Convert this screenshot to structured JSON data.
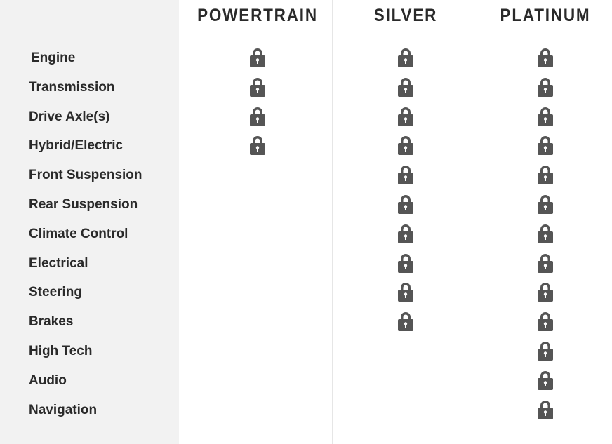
{
  "columns": [
    "POWERTRAIN",
    "SILVER",
    "PLATINUM"
  ],
  "rows": [
    {
      "label": "Engine",
      "coverage": [
        true,
        true,
        true
      ]
    },
    {
      "label": "Transmission",
      "coverage": [
        true,
        true,
        true
      ]
    },
    {
      "label": "Drive Axle(s)",
      "coverage": [
        true,
        true,
        true
      ]
    },
    {
      "label": "Hybrid/Electric",
      "coverage": [
        true,
        true,
        true
      ]
    },
    {
      "label": "Front Suspension",
      "coverage": [
        false,
        true,
        true
      ]
    },
    {
      "label": "Rear Suspension",
      "coverage": [
        false,
        true,
        true
      ]
    },
    {
      "label": "Climate Control",
      "coverage": [
        false,
        true,
        true
      ]
    },
    {
      "label": "Electrical",
      "coverage": [
        false,
        true,
        true
      ]
    },
    {
      "label": "Steering",
      "coverage": [
        false,
        true,
        true
      ]
    },
    {
      "label": "Brakes",
      "coverage": [
        false,
        true,
        true
      ]
    },
    {
      "label": "High Tech",
      "coverage": [
        false,
        false,
        true
      ]
    },
    {
      "label": "Audio",
      "coverage": [
        false,
        false,
        true
      ]
    },
    {
      "label": "Navigation",
      "coverage": [
        false,
        false,
        true
      ]
    }
  ],
  "icon": "lock-icon",
  "icon_color": "#555555"
}
